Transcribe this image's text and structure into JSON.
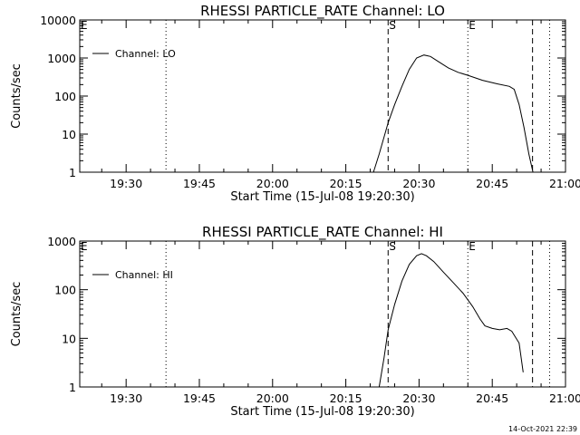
{
  "footer": {
    "timestamp": "14-Oct-2021 22:39"
  },
  "chart_data": [
    {
      "type": "line",
      "title": "RHESSI PARTICLE_RATE Channel: LO",
      "xlabel": "Start Time (15-Jul-08 19:20:30)",
      "ylabel": "Counts/sec",
      "y_scale": "log",
      "xlim": [
        "19:20:30",
        "21:00:00"
      ],
      "ylim": [
        1,
        10000
      ],
      "x_ticks": [
        "19:30",
        "19:45",
        "20:00",
        "20:15",
        "20:30",
        "20:45",
        "21:00"
      ],
      "y_ticks": [
        {
          "value": 1,
          "label": "1"
        },
        {
          "value": 10,
          "label": "10"
        },
        {
          "value": 100,
          "label": "100"
        },
        {
          "value": 1000,
          "label": "1000"
        },
        {
          "value": 10000,
          "label": "10000"
        }
      ],
      "legend": {
        "position": "top-left",
        "entries": [
          "Channel: LO"
        ]
      },
      "markers": [
        {
          "time": "19:20:30",
          "style": "dotted",
          "label": "E"
        },
        {
          "time": "19:38:10",
          "style": "dotted",
          "label": ""
        },
        {
          "time": "20:23:40",
          "style": "dashed",
          "label": "S"
        },
        {
          "time": "20:40:00",
          "style": "dotted",
          "label": "E"
        },
        {
          "time": "20:53:15",
          "style": "dashed",
          "label": ""
        },
        {
          "time": "20:56:45",
          "style": "dotted",
          "label": ""
        }
      ],
      "series": [
        {
          "name": "Channel: LO",
          "x": [
            "20:20:40",
            "20:21:50",
            "20:23:00",
            "20:23:40",
            "20:25:00",
            "20:26:30",
            "20:28:00",
            "20:29:30",
            "20:31:00",
            "20:32:20",
            "20:34:00",
            "20:36:00",
            "20:38:00",
            "20:40:00",
            "20:43:00",
            "20:46:00",
            "20:48:30",
            "20:49:30",
            "20:50:30",
            "20:51:30",
            "20:52:30",
            "20:53:20"
          ],
          "y": [
            1,
            3,
            10,
            20,
            60,
            180,
            500,
            1000,
            1200,
            1100,
            800,
            550,
            420,
            350,
            260,
            210,
            180,
            150,
            60,
            15,
            3,
            1
          ]
        }
      ]
    },
    {
      "type": "line",
      "title": "RHESSI PARTICLE_RATE Channel: HI",
      "xlabel": "Start Time (15-Jul-08 19:20:30)",
      "ylabel": "Counts/sec",
      "y_scale": "log",
      "xlim": [
        "19:20:30",
        "21:00:00"
      ],
      "ylim": [
        1,
        1000
      ],
      "x_ticks": [
        "19:30",
        "19:45",
        "20:00",
        "20:15",
        "20:30",
        "20:45",
        "21:00"
      ],
      "y_ticks": [
        {
          "value": 1,
          "label": "1"
        },
        {
          "value": 10,
          "label": "10"
        },
        {
          "value": 100,
          "label": "100"
        },
        {
          "value": 1000,
          "label": "1000"
        }
      ],
      "legend": {
        "position": "top-left",
        "entries": [
          "Channel: HI"
        ]
      },
      "markers": [
        {
          "time": "19:20:30",
          "style": "dotted",
          "label": "E"
        },
        {
          "time": "19:38:10",
          "style": "dotted",
          "label": ""
        },
        {
          "time": "20:23:40",
          "style": "dashed",
          "label": "S"
        },
        {
          "time": "20:40:00",
          "style": "dotted",
          "label": "E"
        },
        {
          "time": "20:53:15",
          "style": "dashed",
          "label": ""
        },
        {
          "time": "20:56:45",
          "style": "dotted",
          "label": ""
        }
      ],
      "series": [
        {
          "name": "Channel: HI",
          "x": [
            "20:21:50",
            "20:22:50",
            "20:23:40",
            "20:25:00",
            "20:26:30",
            "20:28:00",
            "20:29:30",
            "20:30:30",
            "20:31:30",
            "20:33:00",
            "20:35:00",
            "20:37:00",
            "20:39:00",
            "20:41:00",
            "20:42:30",
            "20:43:30",
            "20:45:00",
            "20:46:30",
            "20:48:00",
            "20:49:00",
            "20:50:30",
            "20:51:20"
          ],
          "y": [
            1,
            4,
            15,
            50,
            150,
            330,
            500,
            550,
            500,
            380,
            230,
            140,
            85,
            45,
            25,
            18,
            16,
            15,
            16,
            14,
            8,
            2
          ]
        }
      ]
    }
  ]
}
